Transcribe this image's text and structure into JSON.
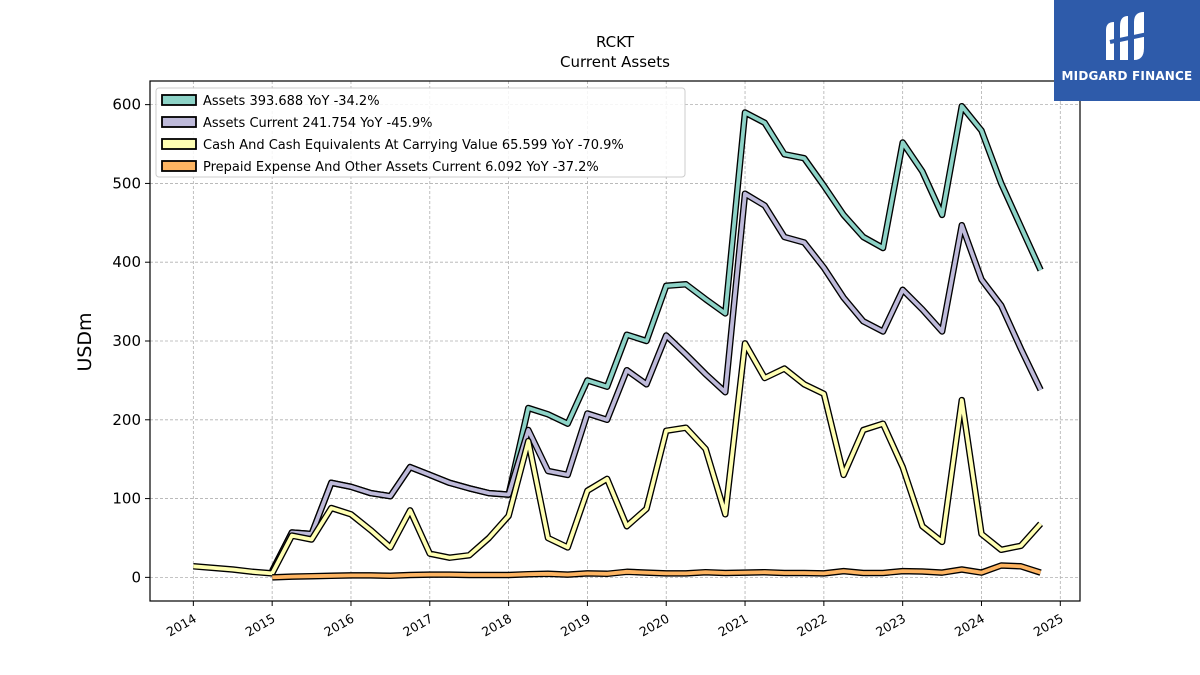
{
  "brand": {
    "name": "MIDGARD FINANCE",
    "logo_icon": "midgard-m-icon",
    "bg_color": "#2e5baa"
  },
  "chart_data": {
    "type": "line",
    "title": "RCKT",
    "subtitle": "Current  Assets",
    "xlabel": "",
    "ylabel": "USDm",
    "ylim": [
      -30,
      630
    ],
    "xlim": [
      2013.45,
      2025.25
    ],
    "yticks": [
      0,
      100,
      200,
      300,
      400,
      500,
      600
    ],
    "xticks": [
      2014,
      2015,
      2016,
      2017,
      2018,
      2019,
      2020,
      2021,
      2022,
      2023,
      2024,
      2025
    ],
    "grid": true,
    "legend_position": "top-left",
    "series": [
      {
        "name": "Assets  393.688 YoY -34.2%",
        "color": "#8dd3c7",
        "points": [
          [
            2015.0,
            8
          ],
          [
            2015.25,
            57
          ],
          [
            2015.5,
            55
          ],
          [
            2015.75,
            120
          ],
          [
            2016.0,
            115
          ],
          [
            2016.25,
            107
          ],
          [
            2016.5,
            103
          ],
          [
            2016.75,
            140
          ],
          [
            2017.0,
            130
          ],
          [
            2017.25,
            120
          ],
          [
            2017.5,
            113
          ],
          [
            2017.75,
            107
          ],
          [
            2018.0,
            105
          ],
          [
            2018.25,
            215
          ],
          [
            2018.5,
            207
          ],
          [
            2018.75,
            195
          ],
          [
            2019.0,
            250
          ],
          [
            2019.25,
            242
          ],
          [
            2019.5,
            308
          ],
          [
            2019.75,
            300
          ],
          [
            2020.0,
            370
          ],
          [
            2020.25,
            372
          ],
          [
            2020.5,
            353
          ],
          [
            2020.75,
            335
          ],
          [
            2021.0,
            590
          ],
          [
            2021.25,
            577
          ],
          [
            2021.5,
            537
          ],
          [
            2021.75,
            532
          ],
          [
            2022.0,
            497
          ],
          [
            2022.25,
            460
          ],
          [
            2022.5,
            432
          ],
          [
            2022.75,
            418
          ],
          [
            2023.0,
            552
          ],
          [
            2023.25,
            515
          ],
          [
            2023.5,
            460
          ],
          [
            2023.75,
            598
          ],
          [
            2024.0,
            567
          ],
          [
            2024.25,
            500
          ],
          [
            2024.5,
            445
          ],
          [
            2024.75,
            390
          ]
        ]
      },
      {
        "name": "Assets Current  241.754 YoY -45.9%",
        "color": "#bebada",
        "points": [
          [
            2015.0,
            8
          ],
          [
            2015.25,
            57
          ],
          [
            2015.5,
            55
          ],
          [
            2015.75,
            120
          ],
          [
            2016.0,
            115
          ],
          [
            2016.25,
            107
          ],
          [
            2016.5,
            103
          ],
          [
            2016.75,
            140
          ],
          [
            2017.0,
            130
          ],
          [
            2017.25,
            120
          ],
          [
            2017.5,
            113
          ],
          [
            2017.75,
            107
          ],
          [
            2018.0,
            105
          ],
          [
            2018.25,
            187
          ],
          [
            2018.5,
            135
          ],
          [
            2018.75,
            130
          ],
          [
            2019.0,
            208
          ],
          [
            2019.25,
            200
          ],
          [
            2019.5,
            263
          ],
          [
            2019.75,
            245
          ],
          [
            2020.0,
            307
          ],
          [
            2020.25,
            283
          ],
          [
            2020.5,
            258
          ],
          [
            2020.75,
            235
          ],
          [
            2021.0,
            487
          ],
          [
            2021.25,
            472
          ],
          [
            2021.5,
            432
          ],
          [
            2021.75,
            425
          ],
          [
            2022.0,
            393
          ],
          [
            2022.25,
            355
          ],
          [
            2022.5,
            325
          ],
          [
            2022.75,
            312
          ],
          [
            2023.0,
            365
          ],
          [
            2023.25,
            340
          ],
          [
            2023.5,
            312
          ],
          [
            2023.75,
            447
          ],
          [
            2024.0,
            378
          ],
          [
            2024.25,
            345
          ],
          [
            2024.5,
            290
          ],
          [
            2024.75,
            238
          ]
        ]
      },
      {
        "name": "Cash And Cash Equivalents At Carrying Value  65.599 YoY -70.9%",
        "color": "#ffffb3",
        "points": [
          [
            2014.0,
            14
          ],
          [
            2014.25,
            12
          ],
          [
            2014.5,
            10
          ],
          [
            2014.75,
            7
          ],
          [
            2015.0,
            5
          ],
          [
            2015.25,
            53
          ],
          [
            2015.5,
            48
          ],
          [
            2015.75,
            88
          ],
          [
            2016.0,
            80
          ],
          [
            2016.25,
            60
          ],
          [
            2016.5,
            38
          ],
          [
            2016.75,
            85
          ],
          [
            2017.0,
            30
          ],
          [
            2017.25,
            25
          ],
          [
            2017.5,
            28
          ],
          [
            2017.75,
            50
          ],
          [
            2018.0,
            78
          ],
          [
            2018.25,
            173
          ],
          [
            2018.5,
            50
          ],
          [
            2018.75,
            38
          ],
          [
            2019.0,
            110
          ],
          [
            2019.25,
            125
          ],
          [
            2019.5,
            65
          ],
          [
            2019.75,
            87
          ],
          [
            2020.0,
            186
          ],
          [
            2020.25,
            190
          ],
          [
            2020.5,
            163
          ],
          [
            2020.75,
            80
          ],
          [
            2021.0,
            297
          ],
          [
            2021.25,
            253
          ],
          [
            2021.5,
            265
          ],
          [
            2021.75,
            245
          ],
          [
            2022.0,
            233
          ],
          [
            2022.25,
            130
          ],
          [
            2022.5,
            187
          ],
          [
            2022.75,
            195
          ],
          [
            2023.0,
            140
          ],
          [
            2023.25,
            65
          ],
          [
            2023.5,
            45
          ],
          [
            2023.75,
            225
          ],
          [
            2024.0,
            55
          ],
          [
            2024.25,
            35
          ],
          [
            2024.5,
            40
          ],
          [
            2024.75,
            68
          ]
        ]
      },
      {
        "name": "Prepaid Expense And Other Assets Current  6.092 YoY -37.2%",
        "color": "#fdb462",
        "points": [
          [
            2015.0,
            0
          ],
          [
            2015.25,
            1
          ],
          [
            2015.5,
            1.5
          ],
          [
            2015.75,
            2
          ],
          [
            2016.0,
            2.5
          ],
          [
            2016.25,
            2.5
          ],
          [
            2016.5,
            2
          ],
          [
            2016.75,
            3
          ],
          [
            2017.0,
            3.5
          ],
          [
            2017.25,
            3.5
          ],
          [
            2017.5,
            3
          ],
          [
            2017.75,
            3
          ],
          [
            2018.0,
            3
          ],
          [
            2018.25,
            4
          ],
          [
            2018.5,
            4.5
          ],
          [
            2018.75,
            3.5
          ],
          [
            2019.0,
            5
          ],
          [
            2019.25,
            4.5
          ],
          [
            2019.5,
            7
          ],
          [
            2019.75,
            6
          ],
          [
            2020.0,
            5
          ],
          [
            2020.25,
            5
          ],
          [
            2020.5,
            6.5
          ],
          [
            2020.75,
            5.5
          ],
          [
            2021.0,
            6
          ],
          [
            2021.25,
            6.5
          ],
          [
            2021.5,
            5.5
          ],
          [
            2021.75,
            5.5
          ],
          [
            2022.0,
            5
          ],
          [
            2022.25,
            8
          ],
          [
            2022.5,
            5.5
          ],
          [
            2022.75,
            5.5
          ],
          [
            2023.0,
            8
          ],
          [
            2023.25,
            7.5
          ],
          [
            2023.5,
            6
          ],
          [
            2023.75,
            10
          ],
          [
            2024.0,
            6
          ],
          [
            2024.25,
            15
          ],
          [
            2024.5,
            14
          ],
          [
            2024.75,
            6
          ]
        ]
      }
    ]
  }
}
